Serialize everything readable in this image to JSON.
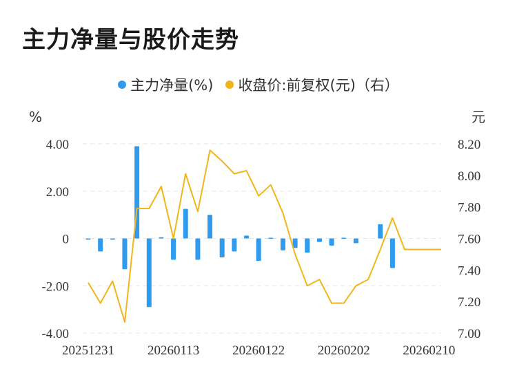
{
  "title": "主力净量与股价走势",
  "legend": {
    "net_label": "主力净量(%)",
    "price_label": "收盘价:前复权(元)（右）"
  },
  "colors": {
    "net": "#2e9bef",
    "price": "#f2b519",
    "grid": "#e6e6e6"
  },
  "chart_data": {
    "type": "bar+line",
    "title": "主力净量与股价走势",
    "left_axis_unit": "%",
    "right_axis_unit": "元",
    "left_ylim": [
      -4.0,
      4.0
    ],
    "left_ticks": [
      "4.00",
      "2.00",
      "0",
      "-2.00",
      "-4.00"
    ],
    "right_ylim": [
      7.0,
      8.2
    ],
    "right_ticks": [
      "8.20",
      "8.00",
      "7.80",
      "7.60",
      "7.40",
      "7.20",
      "7.00"
    ],
    "x_tick_labels": [
      "20251231",
      "20260113",
      "20260122",
      "20260202",
      "20260210"
    ],
    "x_tick_index": [
      0,
      7,
      14,
      21,
      28
    ],
    "series": [
      {
        "name": "主力净量(%)",
        "kind": "bar",
        "axis": "left",
        "values": [
          -0.05,
          -0.55,
          -0.05,
          -1.3,
          3.9,
          -2.9,
          0.05,
          -0.9,
          1.25,
          -0.9,
          1.0,
          -0.8,
          -0.55,
          0.12,
          -0.95,
          0.03,
          -0.5,
          -0.4,
          -0.6,
          -0.15,
          -0.3,
          0.03,
          -0.2,
          0.0,
          0.6,
          -1.25,
          0,
          0,
          0,
          0
        ]
      },
      {
        "name": "收盘价:前复权(元)",
        "kind": "line",
        "axis": "right",
        "values": [
          7.32,
          7.19,
          7.33,
          7.07,
          7.79,
          7.79,
          7.93,
          7.6,
          8.01,
          7.77,
          8.16,
          8.09,
          8.01,
          8.03,
          7.87,
          7.94,
          7.76,
          7.5,
          7.3,
          7.34,
          7.19,
          7.19,
          7.3,
          7.34,
          7.53,
          7.73,
          7.53,
          7.53,
          7.53,
          7.53
        ]
      }
    ]
  }
}
